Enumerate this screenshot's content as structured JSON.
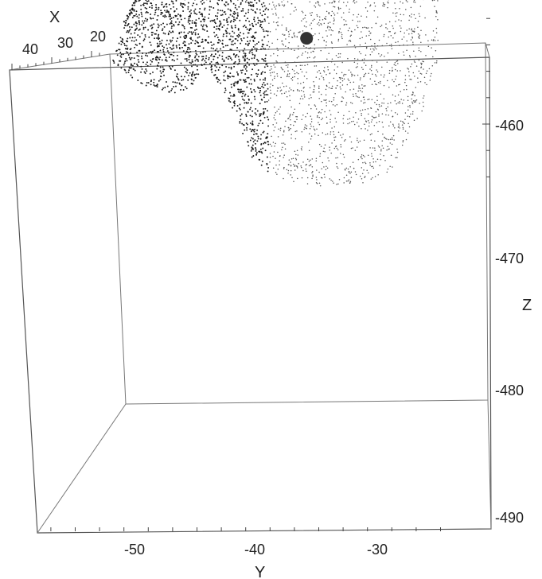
{
  "chart_data": {
    "type": "scatter",
    "subtype": "3d-point-cloud",
    "title": "",
    "x_axis": {
      "label": "X",
      "ticks": [
        "40",
        "30",
        "20"
      ],
      "range": [
        15,
        45
      ]
    },
    "y_axis": {
      "label": "Y",
      "ticks": [
        "-50",
        "-40",
        "-30"
      ],
      "range": [
        -58,
        -24
      ]
    },
    "z_axis": {
      "label": "Z",
      "ticks": [
        "-460",
        "-470",
        "-480",
        "-490"
      ],
      "range": [
        -492,
        -455
      ]
    },
    "grid": false,
    "legend": "none",
    "point_color": "#1a1a1a",
    "highlight_point": {
      "y": -36,
      "z": -466.5,
      "color": "#333333"
    },
    "cloud_outline_yz": [
      [
        -44.5,
        -464.3
      ],
      [
        -43.5,
        -463.5
      ],
      [
        -42.0,
        -461.0
      ],
      [
        -40.5,
        -457.5
      ],
      [
        -38.5,
        -455.8
      ],
      [
        -35.0,
        -455.3
      ],
      [
        -31.0,
        -455.5
      ],
      [
        -29.0,
        -456.5
      ],
      [
        -28.0,
        -458.5
      ],
      [
        -26.5,
        -461.0
      ],
      [
        -25.2,
        -465.0
      ],
      [
        -25.2,
        -470.0
      ],
      [
        -26.5,
        -475.0
      ],
      [
        -28.5,
        -477.5
      ],
      [
        -31.5,
        -479.0
      ],
      [
        -35.0,
        -480.0
      ],
      [
        -37.5,
        -480.5
      ],
      [
        -38.5,
        -483.0
      ],
      [
        -40.5,
        -483.7
      ],
      [
        -43.0,
        -482.5
      ],
      [
        -45.0,
        -480.0
      ],
      [
        -47.5,
        -476.0
      ],
      [
        -49.5,
        -471.0
      ],
      [
        -51.5,
        -466.0
      ],
      [
        -52.0,
        -464.5
      ],
      [
        -49.5,
        -463.0
      ],
      [
        -47.0,
        -462.2
      ],
      [
        -45.5,
        -462.8
      ]
    ]
  }
}
